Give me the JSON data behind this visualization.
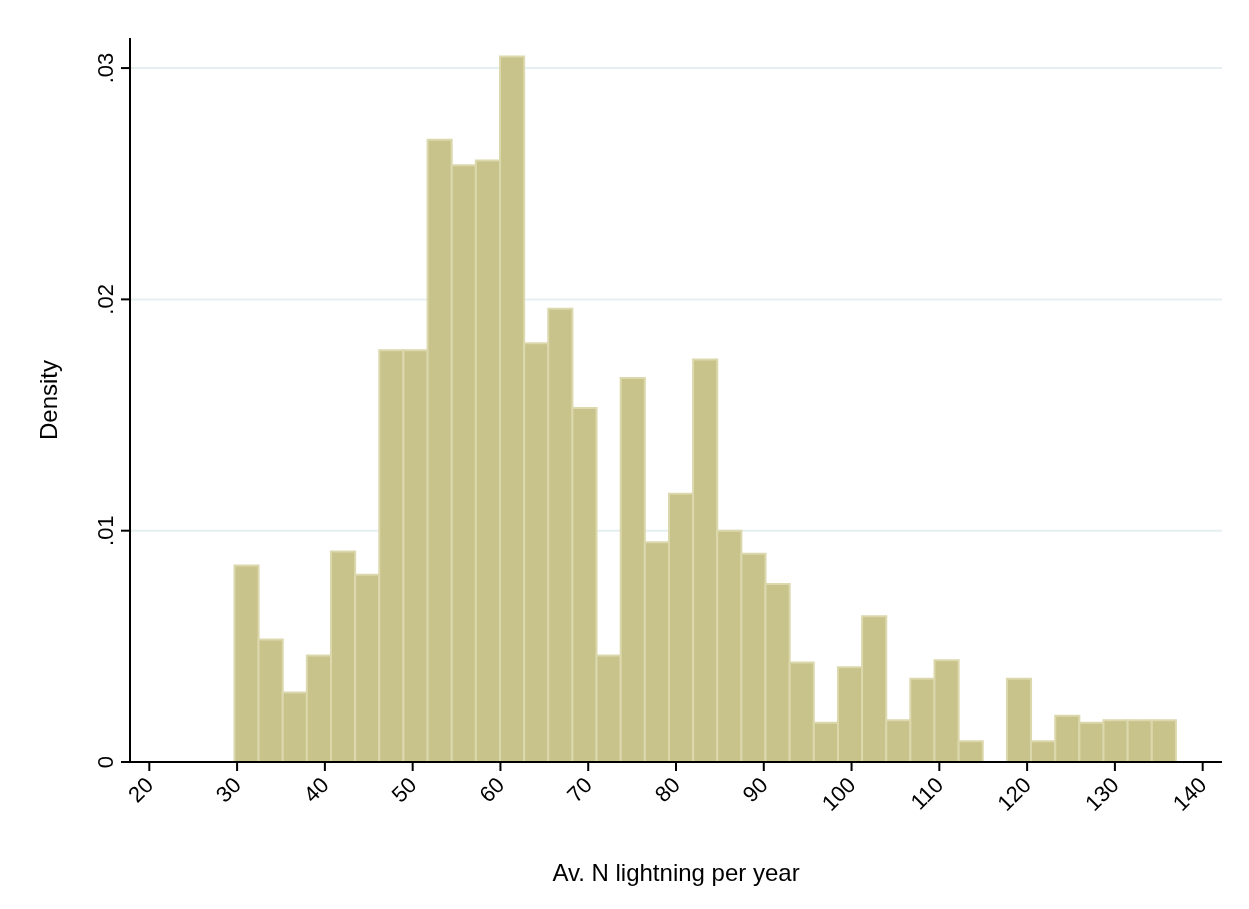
{
  "chart_data": {
    "type": "histogram",
    "xlabel": "Av. N lightning per year",
    "ylabel": "Density",
    "color": "#c8c38a",
    "bins": [
      29.7,
      32.45,
      35.2,
      37.95,
      40.7,
      43.45,
      46.2,
      48.95,
      51.7,
      54.45,
      57.2,
      59.95,
      62.7,
      65.45,
      68.2,
      70.95,
      73.7,
      76.45,
      79.2,
      81.95,
      84.7,
      87.45,
      90.2,
      92.95,
      95.7,
      98.45,
      101.2,
      103.95,
      106.7,
      109.45,
      112.2,
      114.95,
      117.7,
      120.45,
      123.2,
      125.95,
      128.7,
      131.45,
      134.2,
      136.95
    ],
    "values": [
      0.0085,
      0.0053,
      0.003,
      0.0046,
      0.0091,
      0.0081,
      0.0178,
      0.0178,
      0.0269,
      0.0258,
      0.026,
      0.0305,
      0.0181,
      0.0196,
      0.0153,
      0.0046,
      0.0166,
      0.0095,
      0.0116,
      0.0174,
      0.01,
      0.009,
      0.0077,
      0.0043,
      0.0017,
      0.0041,
      0.0063,
      0.0018,
      0.0036,
      0.0044,
      0.0009,
      0,
      0.0036,
      0.0009,
      0.002,
      0.0017,
      0.0018,
      0.0018,
      0.0018
    ],
    "xlim": [
      17.8,
      142.2
    ],
    "xticks": [
      20,
      30,
      40,
      50,
      60,
      70,
      80,
      90,
      100,
      110,
      120,
      130,
      140
    ],
    "ylim": [
      0,
      0.0313
    ],
    "yticks": [
      0,
      {
        "value": 0.01,
        "label": ".01"
      },
      {
        "value": 0.02,
        "label": ".02"
      },
      {
        "value": 0.03,
        "label": ".03"
      }
    ],
    "grid": "y"
  }
}
